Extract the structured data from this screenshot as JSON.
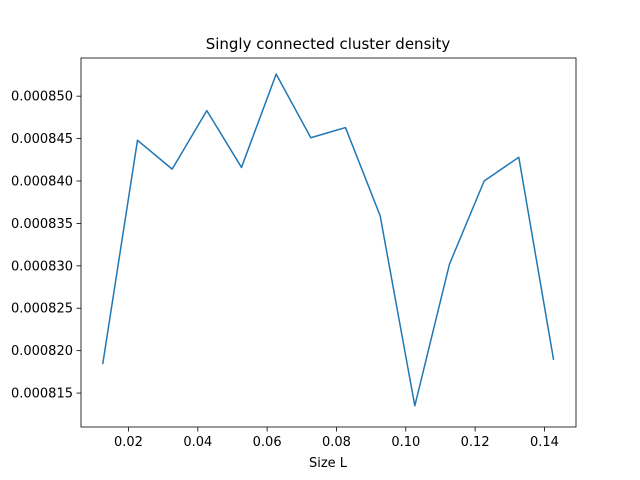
{
  "chart_data": {
    "type": "line",
    "title": "Singly connected cluster density",
    "xlabel": "Size L",
    "ylabel": "",
    "xlim": [
      0.0063,
      0.1491
    ],
    "ylim": [
      0.000811,
      0.0008545
    ],
    "xticks": [
      0.02,
      0.04,
      0.06,
      0.08,
      0.1,
      0.12,
      0.14
    ],
    "xtick_labels": [
      "0.02",
      "0.04",
      "0.06",
      "0.08",
      "0.10",
      "0.12",
      "0.14"
    ],
    "yticks": [
      0.000815,
      0.00082,
      0.000825,
      0.00083,
      0.000835,
      0.00084,
      0.000845,
      0.00085
    ],
    "ytick_labels": [
      "0.000815",
      "0.000820",
      "0.000825",
      "0.000830",
      "0.000835",
      "0.000840",
      "0.000845",
      "0.000850"
    ],
    "grid": false,
    "series": [
      {
        "color": "#1f77b4",
        "x": [
          0.0126,
          0.0226,
          0.0326,
          0.0426,
          0.0526,
          0.0626,
          0.0726,
          0.0826,
          0.0926,
          0.1026,
          0.1126,
          0.1226,
          0.1326,
          0.1426
        ],
        "y": [
          0.0008185,
          0.0008448,
          0.0008414,
          0.0008483,
          0.0008416,
          0.0008526,
          0.0008451,
          0.0008463,
          0.0008359,
          0.0008135,
          0.0008302,
          0.00084,
          0.0008428,
          0.000819
        ]
      }
    ]
  }
}
